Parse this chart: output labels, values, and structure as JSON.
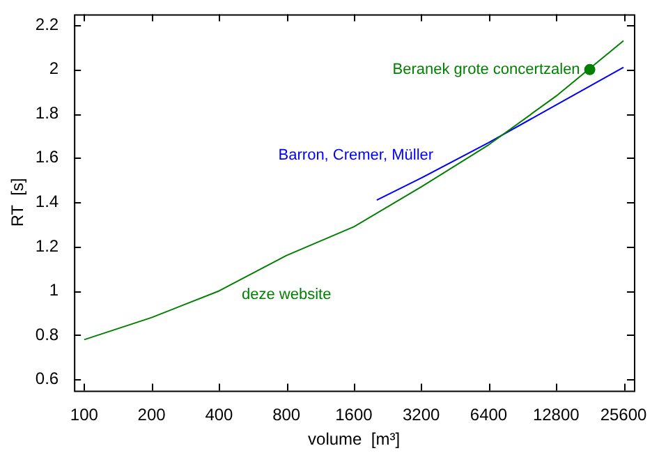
{
  "chart_data": {
    "type": "line",
    "xlabel": "volume  [m³]",
    "ylabel": "RT  [s]",
    "log": "x",
    "xlim": [
      90,
      28500
    ],
    "xticks": [
      100,
      200,
      400,
      800,
      1600,
      3200,
      6400,
      12800,
      25600
    ],
    "ylim": [
      0.55,
      2.25
    ],
    "yticks": [
      0.6,
      0.8,
      1,
      1.2,
      1.4,
      1.6,
      1.8,
      2,
      2.2
    ],
    "grid": false,
    "legend": false,
    "series": [
      {
        "name": "deze website",
        "color": "#008000",
        "x": [
          100,
          200,
          400,
          800,
          1600,
          3200,
          6400,
          12800,
          25600
        ],
        "values": [
          0.78,
          0.88,
          1.0,
          1.16,
          1.29,
          1.47,
          1.66,
          1.88,
          2.13
        ]
      },
      {
        "name": "Barron, Cremer, Müller",
        "color": "#0000ff",
        "x": [
          2025,
          3200,
          6400,
          12800,
          25600
        ],
        "values": [
          1.41,
          1.51,
          1.67,
          1.84,
          2.01
        ]
      },
      {
        "name": "Beranek grote concertzalen",
        "type": "scatter",
        "marker": "circle",
        "color": "#008000",
        "x": [
          18100
        ],
        "values": [
          2.0
        ]
      }
    ]
  }
}
